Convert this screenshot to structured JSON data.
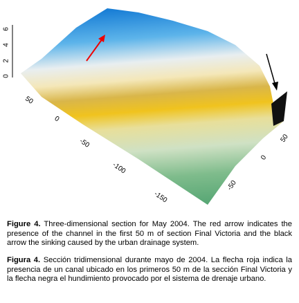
{
  "figure": {
    "z_ticks": [
      6,
      4,
      2,
      0
    ],
    "x_ticks": [
      50,
      0,
      -50,
      -100,
      -150
    ],
    "y_ticks": [
      50,
      0,
      -50
    ]
  },
  "captions": [
    {
      "label": "Figure 4.",
      "text": "Three-dimensional section for May 2004. The red arrow indicates the presence of the channel in the first 50 m of section Final Victoria and the black arrow the sinking caused by the urban drainage system."
    },
    {
      "label": "Figura 4.",
      "text": "Sección tridimensional durante mayo de 2004. La flecha roja indica la presencia de un canal ubicado en los primeros 50 m de la sección Final Victoria y la flecha negra el hundimiento provocado por el sistema de drenaje urbano."
    }
  ]
}
